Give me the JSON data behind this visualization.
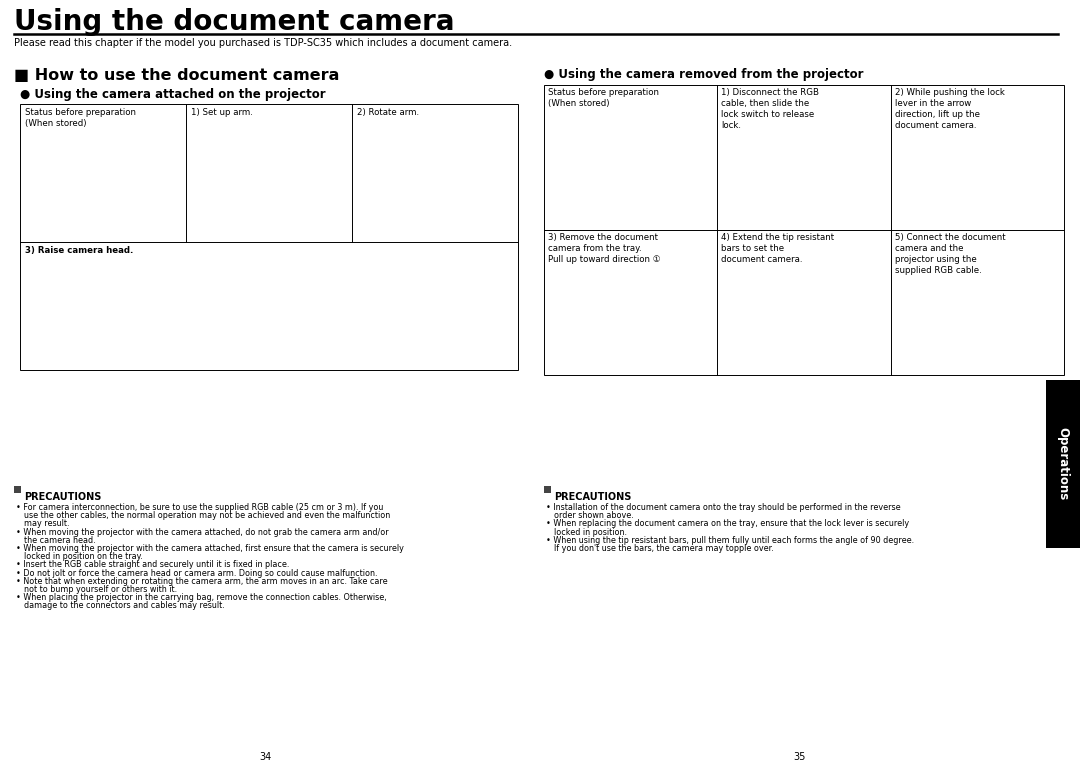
{
  "title": "Using the document camera",
  "bg_color": "#ffffff",
  "text_color": "#000000",
  "sidebar_color": "#000000",
  "sidebar_text": "Operations",
  "sidebar_text_color": "#ffffff",
  "page_numbers": [
    "34",
    "35"
  ],
  "title_fontsize": 20,
  "body_fontsize": 7.0,
  "small_fontsize": 6.2,
  "tiny_fontsize": 5.8,
  "header_intro": "Please read this chapter if the model you purchased is TDP-SC35 which includes a document camera.",
  "section1_title": "■ How to use the document camera",
  "subsection1_title": "● Using the camera attached on the projector",
  "subsection2_title": "● Using the camera removed from the projector",
  "table1_h1_labels": [
    "Status before preparation\n(When stored)",
    "1) Set up arm.",
    "2) Rotate arm."
  ],
  "table1_h2_label": "3) Raise camera head.",
  "table2_r1_labels": [
    "Status before preparation\n(When stored)",
    "1) Disconnect the RGB\ncable, then slide the\nlock switch to release\nlock.",
    "2) While pushing the lock\nlever in the arrow\ndirection, lift up the\ndocument camera."
  ],
  "table2_r2_labels": [
    "3) Remove the document\ncamera from the tray.\nPull up toward direction ①",
    "4) Extend the tip resistant\nbars to set the\ndocument camera.",
    "5) Connect the document\ncamera and the\nprojector using the\nsupplied RGB cable."
  ],
  "precautions1_title": "PRECAUTIONS",
  "precautions1_icon_char": "■",
  "precautions1_bullets": [
    "For camera interconnection, be sure to use the supplied RGB cable (25 cm or 3 m). If you\nuse the other cables, the normal operation may not be achieved and even the malfunction\nmay result.",
    "When moving the projector with the camera attached, do not grab the camera arm and/or\nthe camera head.",
    "When moving the projector with the camera attached, first ensure that the camera is securely\nlocked in position on the tray.",
    "Insert the RGB cable straight and securely until it is fixed in place.",
    "Do not jolt or force the camera head or camera arm. Doing so could cause malfunction.",
    "Note that when extending or rotating the camera arm, the arm moves in an arc. Take care\nnot to bump yourself or others with it.",
    "When placing the projector in the carrying bag, remove the connection cables. Otherwise,\ndamage to the connectors and cables may result."
  ],
  "precautions2_title": "PRECAUTIONS",
  "precautions2_icon_char": "■",
  "precautions2_bullets": [
    "Installation of the document camera onto the tray should be performed in the reverse\norder shown above.",
    "When replacing the document camera on the tray, ensure that the lock lever is securely\nlocked in position.",
    "When using the tip resistant bars, pull them fully until each forms the angle of 90 degree.\nIf you don't use the bars, the camera may topple over."
  ]
}
